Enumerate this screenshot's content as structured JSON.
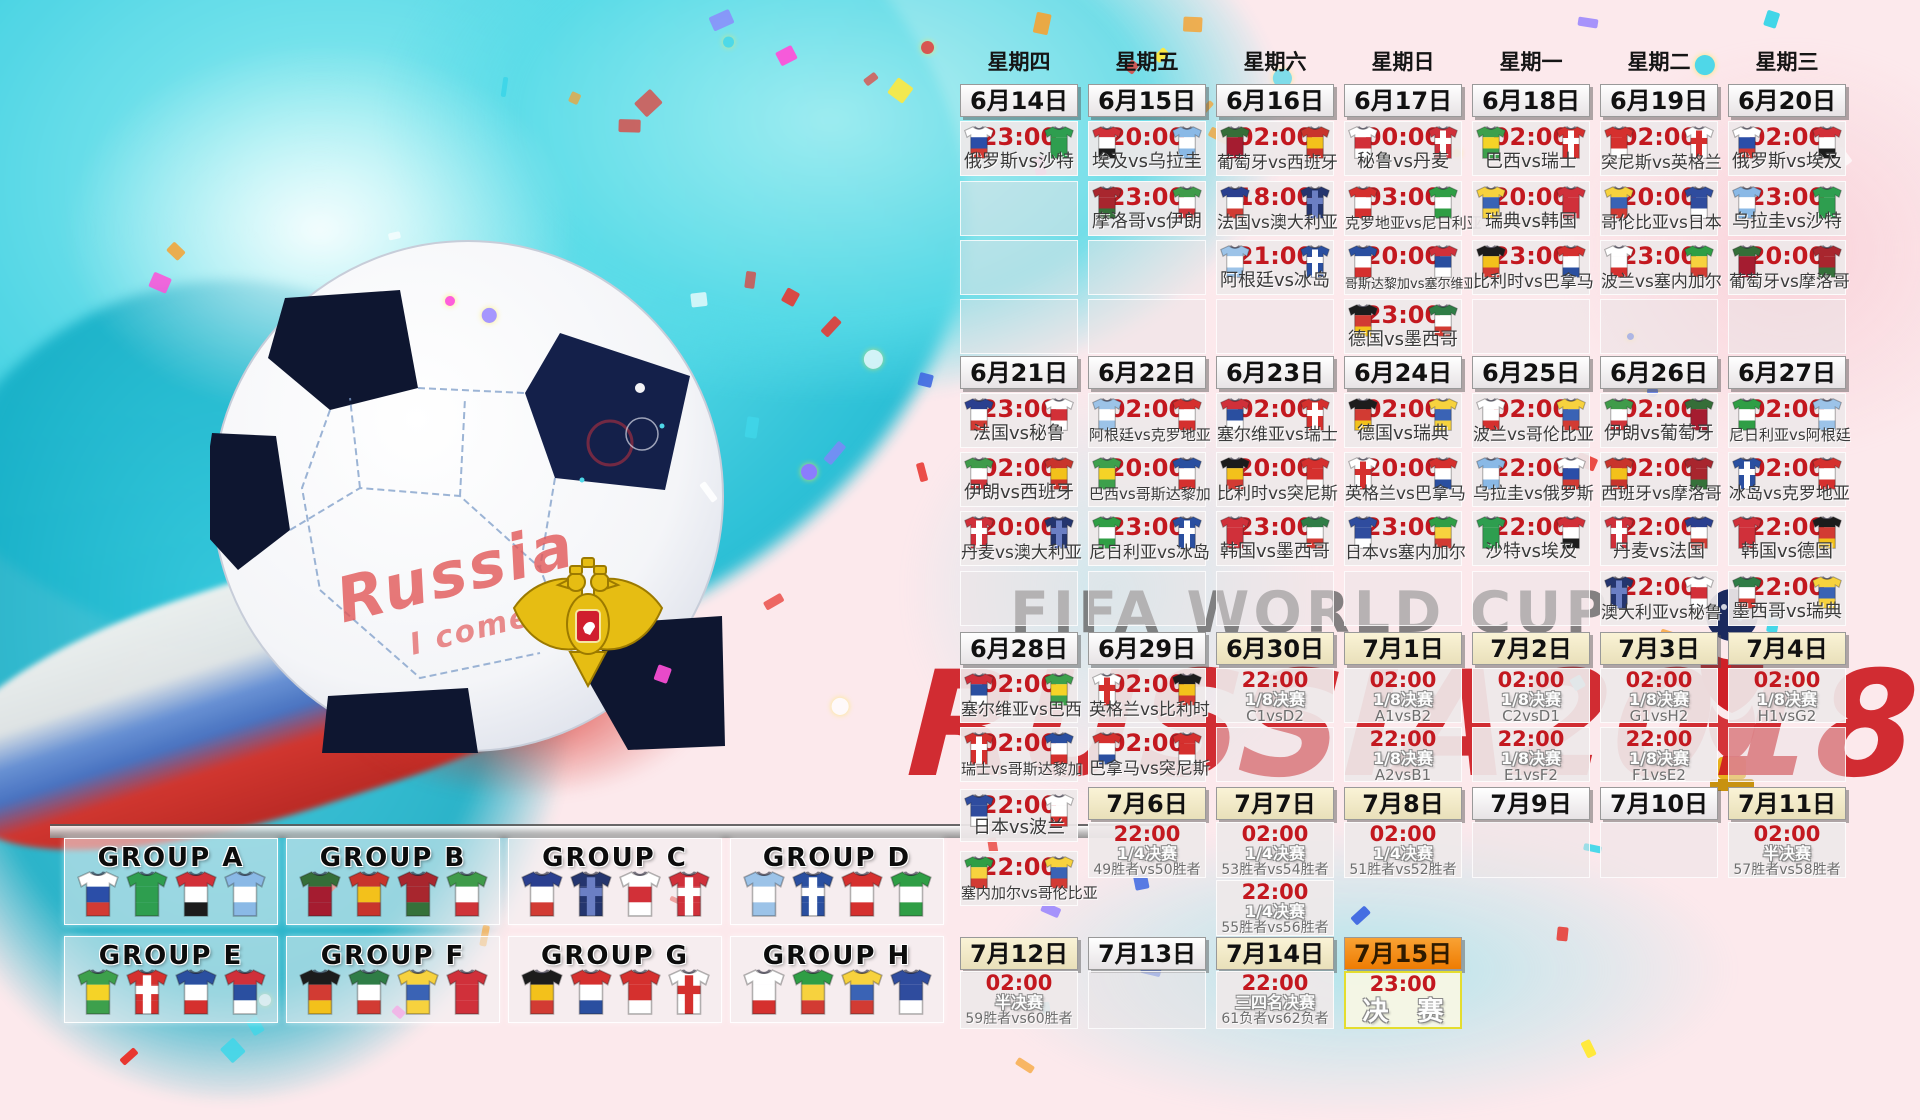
{
  "watermark": {
    "line1": "FIFA WORLD CUP",
    "line2": "RUSSIA2018"
  },
  "ball": {
    "script_line1": "Russia",
    "script_line2": "I come in"
  },
  "colors": {
    "time_red": "#c3181f",
    "date_cream": "#f5eccb",
    "date_orange": "#f08a10",
    "final_border": "#e4dd2e",
    "watermark_red": "#cd1b22",
    "watermark_gray": "#696969",
    "splash_cyan": "#45d4e4",
    "ball_pentagon": "#0e1630",
    "emblem_gold": "#e6bd13"
  },
  "calendar": {
    "weekdays": [
      "星期四",
      "星期五",
      "星期六",
      "星期日",
      "星期一",
      "星期二",
      "星期三"
    ],
    "date_rows": [
      {
        "band": "d1",
        "cells": [
          {
            "col": 0,
            "label": "6月14日",
            "style": "white"
          },
          {
            "col": 1,
            "label": "6月15日",
            "style": "white"
          },
          {
            "col": 2,
            "label": "6月16日",
            "style": "white"
          },
          {
            "col": 3,
            "label": "6月17日",
            "style": "white"
          },
          {
            "col": 4,
            "label": "6月18日",
            "style": "white"
          },
          {
            "col": 5,
            "label": "6月19日",
            "style": "white"
          },
          {
            "col": 6,
            "label": "6月20日",
            "style": "white"
          }
        ]
      },
      {
        "band": "d2",
        "cells": [
          {
            "col": 0,
            "label": "6月21日",
            "style": "white"
          },
          {
            "col": 1,
            "label": "6月22日",
            "style": "white"
          },
          {
            "col": 2,
            "label": "6月23日",
            "style": "white"
          },
          {
            "col": 3,
            "label": "6月24日",
            "style": "white"
          },
          {
            "col": 4,
            "label": "6月25日",
            "style": "white"
          },
          {
            "col": 5,
            "label": "6月26日",
            "style": "white"
          },
          {
            "col": 6,
            "label": "6月27日",
            "style": "white"
          }
        ]
      },
      {
        "band": "d3",
        "cells": [
          {
            "col": 0,
            "label": "6月28日",
            "style": "white"
          },
          {
            "col": 1,
            "label": "6月29日",
            "style": "white"
          },
          {
            "col": 2,
            "label": "6月30日",
            "style": "cream"
          },
          {
            "col": 3,
            "label": "7月1日",
            "style": "cream"
          },
          {
            "col": 4,
            "label": "7月2日",
            "style": "cream"
          },
          {
            "col": 5,
            "label": "7月3日",
            "style": "cream"
          },
          {
            "col": 6,
            "label": "7月4日",
            "style": "cream"
          }
        ]
      },
      {
        "band": "d4",
        "cells": [
          {
            "col": 1,
            "label": "7月6日",
            "style": "cream"
          },
          {
            "col": 2,
            "label": "7月7日",
            "style": "cream"
          },
          {
            "col": 3,
            "label": "7月8日",
            "style": "cream"
          },
          {
            "col": 4,
            "label": "7月9日",
            "style": "white"
          },
          {
            "col": 5,
            "label": "7月10日",
            "style": "white"
          },
          {
            "col": 6,
            "label": "7月11日",
            "style": "cream"
          }
        ]
      },
      {
        "band": "d5",
        "cells": [
          {
            "col": 0,
            "label": "7月12日",
            "style": "cream"
          },
          {
            "col": 1,
            "label": "7月13日",
            "style": "white"
          },
          {
            "col": 2,
            "label": "7月14日",
            "style": "cream"
          },
          {
            "col": 3,
            "label": "7月15日",
            "style": "orange"
          }
        ]
      }
    ],
    "cells": [
      {
        "col": 0,
        "band": "w1r1",
        "time": "23:00",
        "teams": "俄罗斯vs沙特"
      },
      {
        "col": 1,
        "band": "w1r1",
        "time": "20:00",
        "teams": "埃及vs乌拉圭"
      },
      {
        "col": 2,
        "band": "w1r1",
        "time": "02:00",
        "teams": "葡萄牙vs西班牙"
      },
      {
        "col": 3,
        "band": "w1r1",
        "time": "00:00",
        "teams": "秘鲁vs丹麦"
      },
      {
        "col": 4,
        "band": "w1r1",
        "time": "02:00",
        "teams": "巴西vs瑞士"
      },
      {
        "col": 5,
        "band": "w1r1",
        "time": "02:00",
        "teams": "突尼斯vs英格兰"
      },
      {
        "col": 6,
        "band": "w1r1",
        "time": "02:00",
        "teams": "俄罗斯vs埃及"
      },
      {
        "col": 0,
        "band": "w1r2",
        "type": "empty"
      },
      {
        "col": 1,
        "band": "w1r2",
        "time": "23:00",
        "teams": "摩洛哥vs伊朗"
      },
      {
        "col": 2,
        "band": "w1r2",
        "time": "18:00",
        "teams": "法国vs澳大利亚"
      },
      {
        "col": 3,
        "band": "w1r2",
        "time": "03:00",
        "teams": "克罗地亚vs尼日利亚"
      },
      {
        "col": 4,
        "band": "w1r2",
        "time": "20:00",
        "teams": "瑞典vs韩国"
      },
      {
        "col": 5,
        "band": "w1r2",
        "time": "20:00",
        "teams": "哥伦比亚vs日本"
      },
      {
        "col": 6,
        "band": "w1r2",
        "time": "23:00",
        "teams": "乌拉圭vs沙特"
      },
      {
        "col": 0,
        "band": "w1r3",
        "type": "empty"
      },
      {
        "col": 1,
        "band": "w1r3",
        "type": "empty"
      },
      {
        "col": 2,
        "band": "w1r3",
        "time": "21:00",
        "teams": "阿根廷vs冰岛"
      },
      {
        "col": 3,
        "band": "w1r3",
        "time": "20:00",
        "teams": "哥斯达黎加vs塞尔维亚"
      },
      {
        "col": 4,
        "band": "w1r3",
        "time": "23:00",
        "teams": "比利时vs巴拿马"
      },
      {
        "col": 5,
        "band": "w1r3",
        "time": "23:00",
        "teams": "波兰vs塞内加尔"
      },
      {
        "col": 6,
        "band": "w1r3",
        "time": "20:00",
        "teams": "葡萄牙vs摩洛哥"
      },
      {
        "col": 0,
        "band": "w1r4",
        "type": "empty"
      },
      {
        "col": 1,
        "band": "w1r4",
        "type": "empty"
      },
      {
        "col": 2,
        "band": "w1r4",
        "type": "empty"
      },
      {
        "col": 3,
        "band": "w1r4",
        "time": "23:00",
        "teams": "德国vs墨西哥"
      },
      {
        "col": 4,
        "band": "w1r4",
        "type": "empty"
      },
      {
        "col": 5,
        "band": "w1r4",
        "type": "empty"
      },
      {
        "col": 6,
        "band": "w1r4",
        "type": "empty"
      },
      {
        "col": 0,
        "band": "w2r1",
        "time": "23:00",
        "teams": "法国vs秘鲁"
      },
      {
        "col": 1,
        "band": "w2r1",
        "time": "02:00",
        "teams": "阿根廷vs克罗地亚"
      },
      {
        "col": 2,
        "band": "w2r1",
        "time": "02:00",
        "teams": "塞尔维亚vs瑞士"
      },
      {
        "col": 3,
        "band": "w2r1",
        "time": "02:00",
        "teams": "德国vs瑞典"
      },
      {
        "col": 4,
        "band": "w2r1",
        "time": "02:00",
        "teams": "波兰vs哥伦比亚"
      },
      {
        "col": 5,
        "band": "w2r1",
        "time": "02:00",
        "teams": "伊朗vs葡萄牙"
      },
      {
        "col": 6,
        "band": "w2r1",
        "time": "02:00",
        "teams": "尼日利亚vs阿根廷"
      },
      {
        "col": 0,
        "band": "w2r2",
        "time": "02:00",
        "teams": "伊朗vs西班牙"
      },
      {
        "col": 1,
        "band": "w2r2",
        "time": "20:00",
        "teams": "巴西vs哥斯达黎加"
      },
      {
        "col": 2,
        "band": "w2r2",
        "time": "20:00",
        "teams": "比利时vs突尼斯"
      },
      {
        "col": 3,
        "band": "w2r2",
        "time": "20:00",
        "teams": "英格兰vs巴拿马"
      },
      {
        "col": 4,
        "band": "w2r2",
        "time": "22:00",
        "teams": "乌拉圭vs俄罗斯"
      },
      {
        "col": 5,
        "band": "w2r2",
        "time": "02:00",
        "teams": "西班牙vs摩洛哥"
      },
      {
        "col": 6,
        "band": "w2r2",
        "time": "02:00",
        "teams": "冰岛vs克罗地亚"
      },
      {
        "col": 0,
        "band": "w2r3",
        "time": "20:00",
        "teams": "丹麦vs澳大利亚"
      },
      {
        "col": 1,
        "band": "w2r3",
        "time": "23:00",
        "teams": "尼日利亚vs冰岛"
      },
      {
        "col": 2,
        "band": "w2r3",
        "time": "23:00",
        "teams": "韩国vs墨西哥"
      },
      {
        "col": 3,
        "band": "w2r3",
        "time": "23:00",
        "teams": "日本vs塞内加尔"
      },
      {
        "col": 4,
        "band": "w2r3",
        "time": "22:00",
        "teams": "沙特vs埃及"
      },
      {
        "col": 5,
        "band": "w2r3",
        "time": "22:00",
        "teams": "丹麦vs法国"
      },
      {
        "col": 6,
        "band": "w2r3",
        "time": "22:00",
        "teams": "韩国vs德国"
      },
      {
        "col": 0,
        "band": "w2r4",
        "type": "empty"
      },
      {
        "col": 1,
        "band": "w2r4",
        "type": "empty"
      },
      {
        "col": 2,
        "band": "w2r4",
        "type": "empty"
      },
      {
        "col": 3,
        "band": "w2r4",
        "type": "empty"
      },
      {
        "col": 4,
        "band": "w2r4",
        "type": "empty"
      },
      {
        "col": 5,
        "band": "w2r4",
        "time": "22:00",
        "teams": "澳大利亚vs秘鲁"
      },
      {
        "col": 6,
        "band": "w2r4",
        "time": "22:00",
        "teams": "墨西哥vs瑞典"
      },
      {
        "col": 0,
        "band": "w3r1",
        "time": "02:00",
        "teams": "塞尔维亚vs巴西"
      },
      {
        "col": 1,
        "band": "w3r1",
        "time": "02:00",
        "teams": "英格兰vs比利时"
      },
      {
        "col": 2,
        "band": "w3r1",
        "type": "ko",
        "time": "22:00",
        "stage": "1/8决赛",
        "teams": "C1vsD2"
      },
      {
        "col": 3,
        "band": "w3r1",
        "type": "ko",
        "time": "02:00",
        "stage": "1/8决赛",
        "teams": "A1vsB2"
      },
      {
        "col": 4,
        "band": "w3r1",
        "type": "ko",
        "time": "02:00",
        "stage": "1/8决赛",
        "teams": "C2vsD1"
      },
      {
        "col": 5,
        "band": "w3r1",
        "type": "ko",
        "time": "02:00",
        "stage": "1/8决赛",
        "teams": "G1vsH2"
      },
      {
        "col": 6,
        "band": "w3r1",
        "type": "ko",
        "time": "02:00",
        "stage": "1/8决赛",
        "teams": "H1vsG2"
      },
      {
        "col": 0,
        "band": "w3r2",
        "time": "02:00",
        "teams": "瑞士vs哥斯达黎加"
      },
      {
        "col": 1,
        "band": "w3r2",
        "time": "02:00",
        "teams": "巴拿马vs突尼斯"
      },
      {
        "col": 2,
        "band": "w3r2",
        "type": "empty"
      },
      {
        "col": 3,
        "band": "w3r2",
        "type": "ko",
        "time": "22:00",
        "stage": "1/8决赛",
        "teams": "A2vsB1"
      },
      {
        "col": 4,
        "band": "w3r2",
        "type": "ko",
        "time": "22:00",
        "stage": "1/8决赛",
        "teams": "E1vsF2"
      },
      {
        "col": 5,
        "band": "w3r2",
        "type": "ko",
        "time": "22:00",
        "stage": "1/8决赛",
        "teams": "F1vsE2"
      },
      {
        "col": 6,
        "band": "w3r2",
        "type": "empty"
      },
      {
        "col": 0,
        "band": "w3r3",
        "time": "22:00",
        "teams": "日本vs波兰"
      },
      {
        "col": 0,
        "band": "w3r4",
        "time": "22:00",
        "teams": "塞内加尔vs哥伦比亚"
      },
      {
        "col": 1,
        "band": "qf1",
        "type": "ko",
        "time": "22:00",
        "stage": "1/4决赛",
        "teams": "49胜者vs50胜者"
      },
      {
        "col": 2,
        "band": "qf1",
        "type": "ko",
        "time": "02:00",
        "stage": "1/4决赛",
        "teams": "53胜者vs54胜者"
      },
      {
        "col": 3,
        "band": "qf1",
        "type": "ko",
        "time": "02:00",
        "stage": "1/4决赛",
        "teams": "51胜者vs52胜者"
      },
      {
        "col": 4,
        "band": "qf1",
        "type": "empty"
      },
      {
        "col": 5,
        "band": "qf1",
        "type": "empty"
      },
      {
        "col": 6,
        "band": "qf1",
        "type": "ko",
        "time": "02:00",
        "stage": "半决赛",
        "teams": "57胜者vs58胜者"
      },
      {
        "col": 2,
        "band": "qf2",
        "type": "ko",
        "time": "22:00",
        "stage": "1/4决赛",
        "teams": "55胜者vs56胜者"
      },
      {
        "col": 0,
        "band": "b5",
        "type": "ko",
        "time": "02:00",
        "stage": "半决赛",
        "teams": "59胜者vs60胜者"
      },
      {
        "col": 1,
        "band": "b5",
        "type": "empty"
      },
      {
        "col": 2,
        "band": "b5",
        "type": "ko",
        "time": "22:00",
        "stage": "三四名决赛",
        "teams": "61负者vs62负者"
      },
      {
        "col": 3,
        "band": "b5",
        "type": "final",
        "time": "23:00",
        "stage": "决 赛"
      }
    ]
  },
  "groups": [
    {
      "name": "GROUP A",
      "teams": [
        "俄罗斯",
        "沙特",
        "埃及",
        "乌拉圭"
      ]
    },
    {
      "name": "GROUP B",
      "teams": [
        "葡萄牙",
        "西班牙",
        "摩洛哥",
        "伊朗"
      ]
    },
    {
      "name": "GROUP C",
      "teams": [
        "法国",
        "澳大利亚",
        "秘鲁",
        "丹麦"
      ]
    },
    {
      "name": "GROUP D",
      "teams": [
        "阿根廷",
        "冰岛",
        "克罗地亚",
        "尼日利亚"
      ]
    },
    {
      "name": "GROUP E",
      "teams": [
        "巴西",
        "瑞士",
        "哥斯达黎加",
        "塞尔维亚"
      ]
    },
    {
      "name": "GROUP F",
      "teams": [
        "德国",
        "墨西哥",
        "瑞典",
        "韩国"
      ]
    },
    {
      "name": "GROUP G",
      "teams": [
        "比利时",
        "巴拿马",
        "突尼斯",
        "英格兰"
      ]
    },
    {
      "name": "GROUP H",
      "teams": [
        "波兰",
        "塞内加尔",
        "哥伦比亚",
        "日本"
      ]
    }
  ],
  "team_colors": {
    "俄罗斯": {
      "stripes": [
        "#ffffff",
        "#2b4ea8",
        "#d23b33"
      ]
    },
    "沙特": {
      "stripes": [
        "#2e9e4f",
        "#2e9e4f",
        "#2e9e4f"
      ]
    },
    "埃及": {
      "stripes": [
        "#d23038",
        "#ffffff",
        "#1c1c1c"
      ]
    },
    "乌拉圭": {
      "stripes": [
        "#8ab9e6",
        "#ffffff",
        "#8ab9e6"
      ]
    },
    "葡萄牙": {
      "stripes": [
        "#356e38",
        "#a51c30",
        "#a51c30"
      ]
    },
    "西班牙": {
      "stripes": [
        "#c8342c",
        "#f3c11b",
        "#c8342c"
      ]
    },
    "摩洛哥": {
      "stripes": [
        "#a8262e",
        "#a8262e",
        "#35713a"
      ]
    },
    "伊朗": {
      "stripes": [
        "#3f9b4a",
        "#ffffff",
        "#cf3439"
      ]
    },
    "法国": {
      "stripes": [
        "#2a3f8f",
        "#ffffff",
        "#d23b33"
      ]
    },
    "澳大利亚": {
      "stripes": [
        "#24356e",
        "#24356e",
        "#24356e"
      ],
      "cross": "#6b7fc4"
    },
    "秘鲁": {
      "stripes": [
        "#ffffff",
        "#d23038",
        "#ffffff"
      ]
    },
    "丹麦": {
      "stripes": [
        "#d0303a",
        "#d0303a",
        "#d0303a"
      ],
      "cross": "#ffffff"
    },
    "巴西": {
      "stripes": [
        "#3da04c",
        "#f5d327",
        "#3da04c"
      ]
    },
    "瑞士": {
      "stripes": [
        "#d5302e",
        "#d5302e",
        "#d5302e"
      ],
      "cross": "#ffffff"
    },
    "突尼斯": {
      "stripes": [
        "#d5302e",
        "#d5302e",
        "#ffffff"
      ]
    },
    "英格兰": {
      "stripes": [
        "#ffffff",
        "#ffffff",
        "#ffffff"
      ],
      "cross": "#d5302e"
    },
    "克罗地亚": {
      "stripes": [
        "#d5302e",
        "#ffffff",
        "#d5302e"
      ]
    },
    "尼日利亚": {
      "stripes": [
        "#2f9e45",
        "#ffffff",
        "#2f9e45"
      ]
    },
    "瑞典": {
      "stripes": [
        "#f7d23e",
        "#3a63b5",
        "#f7d23e"
      ]
    },
    "韩国": {
      "stripes": [
        "#d0303a",
        "#d0303a",
        "#d0303a"
      ]
    },
    "哥伦比亚": {
      "stripes": [
        "#f7d23e",
        "#3a63b5",
        "#d23b33"
      ]
    },
    "日本": {
      "stripes": [
        "#2f4c9e",
        "#2f4c9e",
        "#ffffff"
      ]
    },
    "阿根廷": {
      "stripes": [
        "#9cc3e8",
        "#ffffff",
        "#9cc3e8"
      ]
    },
    "冰岛": {
      "stripes": [
        "#2a4fa0",
        "#2a4fa0",
        "#2a4fa0"
      ],
      "cross": "#ffffff"
    },
    "哥斯达黎加": {
      "stripes": [
        "#2a4fa0",
        "#ffffff",
        "#d5302e"
      ]
    },
    "塞尔维亚": {
      "stripes": [
        "#d0303a",
        "#2a4fa0",
        "#ffffff"
      ]
    },
    "德国": {
      "stripes": [
        "#1c1c1c",
        "#d23b33",
        "#f3c11b"
      ]
    },
    "墨西哥": {
      "stripes": [
        "#2f7d46",
        "#ffffff",
        "#d23b33"
      ]
    },
    "比利时": {
      "stripes": [
        "#1c1c1c",
        "#f3c11b",
        "#d23b33"
      ]
    },
    "巴拿马": {
      "stripes": [
        "#d5302e",
        "#ffffff",
        "#2a4fa0"
      ]
    },
    "波兰": {
      "stripes": [
        "#ffffff",
        "#ffffff",
        "#d5302e"
      ]
    },
    "塞内加尔": {
      "stripes": [
        "#2f9e45",
        "#f7d23e",
        "#d23b33"
      ]
    }
  }
}
